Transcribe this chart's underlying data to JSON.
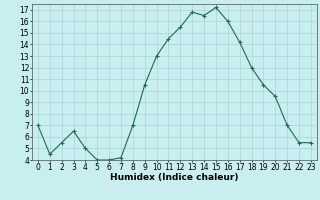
{
  "x": [
    0,
    1,
    2,
    3,
    4,
    5,
    6,
    7,
    8,
    9,
    10,
    11,
    12,
    13,
    14,
    15,
    16,
    17,
    18,
    19,
    20,
    21,
    22,
    23
  ],
  "y": [
    7,
    4.5,
    5.5,
    6.5,
    5,
    4,
    4,
    4.2,
    7,
    10.5,
    13,
    14.5,
    15.5,
    16.8,
    16.5,
    17.2,
    16,
    14.2,
    12,
    10.5,
    9.5,
    7,
    5.5,
    5.5
  ],
  "line_color": "#1a6b5a",
  "marker_color": "#1a6b5a",
  "bg_color": "#c8eef0",
  "grid_color": "#a8d4d6",
  "xlabel": "Humidex (Indice chaleur)",
  "xlabel_fontsize": 6.5,
  "tick_fontsize": 5.5,
  "ylim": [
    4,
    17.5
  ],
  "xlim": [
    -0.5,
    23.5
  ],
  "yticks": [
    4,
    5,
    6,
    7,
    8,
    9,
    10,
    11,
    12,
    13,
    14,
    15,
    16,
    17
  ],
  "xticks": [
    0,
    1,
    2,
    3,
    4,
    5,
    6,
    7,
    8,
    9,
    10,
    11,
    12,
    13,
    14,
    15,
    16,
    17,
    18,
    19,
    20,
    21,
    22,
    23
  ]
}
